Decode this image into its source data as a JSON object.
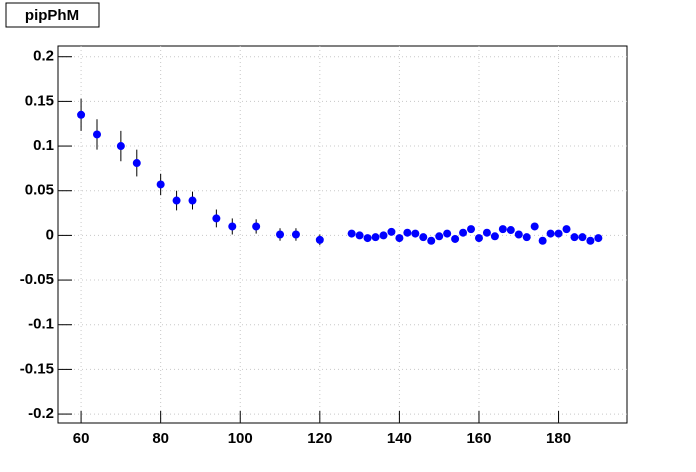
{
  "chart_data": {
    "type": "scatter",
    "title": "pipPhM",
    "x": [
      60,
      64,
      70,
      74,
      80,
      84,
      88,
      94,
      98,
      104,
      110,
      114,
      120,
      128,
      130,
      132,
      134,
      136,
      138,
      140,
      142,
      144,
      146,
      148,
      150,
      152,
      154,
      156,
      158,
      160,
      162,
      164,
      166,
      168,
      170,
      172,
      174,
      176,
      178,
      180,
      182,
      184,
      186,
      188,
      190
    ],
    "values": [
      0.135,
      0.113,
      0.1,
      0.081,
      0.057,
      0.039,
      0.039,
      0.019,
      0.01,
      0.01,
      0.001,
      0.001,
      -0.005,
      0.002,
      0,
      -0.003,
      -0.002,
      0,
      0.004,
      -0.003,
      0.003,
      0.002,
      -0.002,
      -0.006,
      -0.001,
      0.002,
      -0.004,
      0.003,
      0.007,
      -0.003,
      0.003,
      -0.001,
      0.007,
      0.006,
      0.001,
      -0.002,
      0.01,
      -0.006,
      0.002,
      0.002,
      0.007,
      -0.002,
      -0.002,
      -0.006,
      -0.003
    ],
    "errors": [
      0.018,
      0.017,
      0.017,
      0.015,
      0.012,
      0.011,
      0.01,
      0.01,
      0.009,
      0.008,
      0.007,
      0.007,
      0.006,
      0.003,
      0.003,
      0.003,
      0.003,
      0.003,
      0.003,
      0.003,
      0.003,
      0.003,
      0.003,
      0.003,
      0.003,
      0.003,
      0.003,
      0.003,
      0.003,
      0.003,
      0.003,
      0.003,
      0.003,
      0.003,
      0.003,
      0.003,
      0.003,
      0.003,
      0.003,
      0.003,
      0.003,
      0.003,
      0.003,
      0.003,
      0.003
    ],
    "color": "#0000ff",
    "xlim": [
      54.2,
      197.2
    ],
    "ylim": [
      -0.21,
      0.212
    ],
    "xticks": [
      60,
      80,
      100,
      120,
      140,
      160,
      180
    ],
    "yticks": [
      -0.2,
      -0.15,
      -0.1,
      -0.05,
      0,
      0.05,
      0.1,
      0.15,
      0.2
    ],
    "grid": true
  }
}
